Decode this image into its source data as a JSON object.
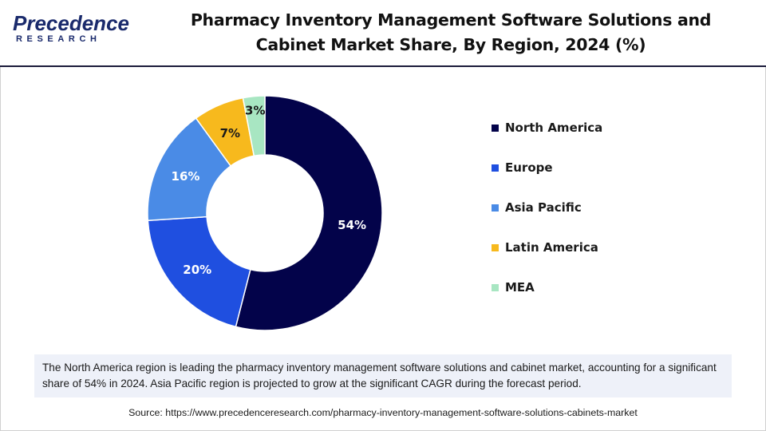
{
  "brand": {
    "logo_top": "Precedence",
    "logo_bottom": "RESEARCH"
  },
  "title_line1": "Pharmacy Inventory Management Software Solutions and",
  "title_line2": "Cabinet Market Share, By Region, 2024 (%)",
  "chart_data": {
    "type": "pie",
    "variant": "donut",
    "title": "Pharmacy Inventory Management Software Solutions and Cabinet Market Share, By Region, 2024 (%)",
    "categories": [
      "North America",
      "Europe",
      "Asia Pacific",
      "Latin America",
      "MEA"
    ],
    "values": [
      54,
      20,
      16,
      7,
      3
    ],
    "labels": [
      "54%",
      "20%",
      "16%",
      "7%",
      "3%"
    ],
    "colors": [
      "#03034a",
      "#1f4fe0",
      "#4a8be6",
      "#f7b91d",
      "#a8e6c2"
    ],
    "label_colors": [
      "#ffffff",
      "#ffffff",
      "#ffffff",
      "#1a1a1a",
      "#1a1a1a"
    ],
    "legend_position": "right"
  },
  "summary": "The North America region is leading the pharmacy inventory management software solutions and cabinet market, accounting for a significant share of 54% in 2024. Asia Pacific region is projected to grow at the significant CAGR during the forecast period.",
  "source": "Source: https://www.precedenceresearch.com/pharmacy-inventory-management-software-solutions-cabinets-market"
}
